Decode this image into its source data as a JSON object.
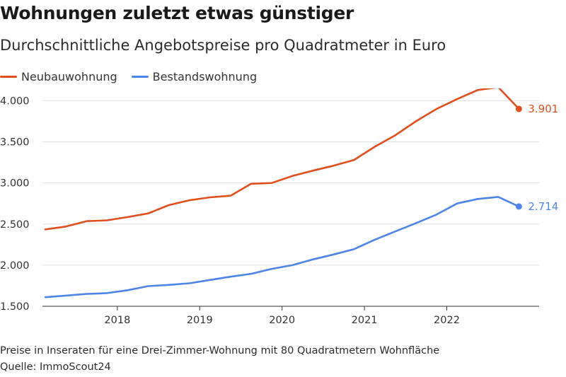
{
  "title": "Wohnungen zuletzt etwas günstiger",
  "subtitle": "Durchschnittliche Angebotspreise pro Quadratmeter in Euro",
  "note": "Preise in Inseraten für eine Drei-Zimmer-Wohnung mit 80 Quadratmetern Wohnfläche",
  "source": "Quelle: ImmoScout24",
  "chart_data": {
    "type": "line",
    "title": "Wohnungen zuletzt etwas günstiger",
    "subtitle": "Durchschnittliche Angebotspreise pro Quadratmeter in Euro",
    "xlabel": "",
    "ylabel": "",
    "ylim": [
      1500,
      4150
    ],
    "yticks": [
      1500,
      2000,
      2500,
      3000,
      3500,
      4000
    ],
    "ytick_labels": [
      "1.500",
      "2.000",
      "2.500",
      "3.000",
      "3.500",
      "4.000"
    ],
    "xticks": [
      2018,
      2019,
      2020,
      2021,
      2022
    ],
    "xtick_labels": [
      "2018",
      "2019",
      "2020",
      "2021",
      "2022"
    ],
    "xlim": [
      2017.125,
      2022.975
    ],
    "grid": "horizontal",
    "legend": "top-left",
    "x": [
      2017.125,
      2017.375,
      2017.625,
      2017.875,
      2018.125,
      2018.375,
      2018.625,
      2018.875,
      2019.125,
      2019.375,
      2019.625,
      2019.875,
      2020.125,
      2020.375,
      2020.625,
      2020.875,
      2021.125,
      2021.375,
      2021.625,
      2021.875,
      2022.125,
      2022.375,
      2022.625,
      2022.875
    ],
    "series": [
      {
        "name": "Neubauwohnung",
        "color": "#e04e1b",
        "values": [
          2435,
          2470,
          2535,
          2545,
          2585,
          2630,
          2730,
          2790,
          2825,
          2845,
          2990,
          3000,
          3085,
          3150,
          3210,
          3280,
          3440,
          3580,
          3750,
          3900,
          4020,
          4130,
          4165,
          3901
        ],
        "end_label": "3.901"
      },
      {
        "name": "Bestandswohnung",
        "color": "#4c85e8",
        "values": [
          1610,
          1630,
          1650,
          1660,
          1695,
          1745,
          1760,
          1780,
          1820,
          1860,
          1895,
          1955,
          2000,
          2070,
          2130,
          2195,
          2310,
          2410,
          2510,
          2615,
          2750,
          2805,
          2830,
          2714
        ],
        "end_label": "2.714"
      }
    ]
  }
}
